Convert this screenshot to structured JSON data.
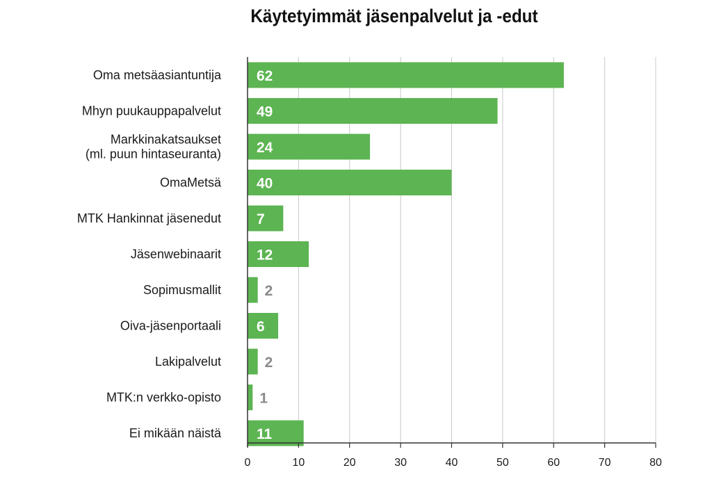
{
  "chart_data": {
    "type": "bar",
    "orientation": "horizontal",
    "title": "Käytetyimmät jäsenpalvelut ja -edut",
    "categories": [
      [
        "Oma metsäasiantuntija"
      ],
      [
        "Mhyn puukauppapalvelut"
      ],
      [
        "Markkinakatsaukset",
        "(ml. puun hintaseuranta)"
      ],
      [
        "OmaMetsä"
      ],
      [
        "MTK Hankinnat jäsenedut"
      ],
      [
        "Jäsenwebinaarit"
      ],
      [
        "Sopimusmallit"
      ],
      [
        "Oiva-jäsenportaali"
      ],
      [
        "Lakipalvelut"
      ],
      [
        "MTK:n verkko-opisto"
      ],
      [
        "Ei mikään näistä"
      ]
    ],
    "values": [
      62,
      49,
      24,
      40,
      7,
      12,
      2,
      6,
      2,
      1,
      11
    ],
    "xlim": [
      0,
      80
    ],
    "xticks": [
      0,
      10,
      20,
      30,
      40,
      50,
      60,
      70,
      80
    ],
    "grid": true,
    "colors": {
      "bar": "#5cb452",
      "grid": "#c8c8c8",
      "axis": "#333333",
      "label_inside": "#ffffff",
      "label_outside": "#8a8a8a"
    }
  }
}
